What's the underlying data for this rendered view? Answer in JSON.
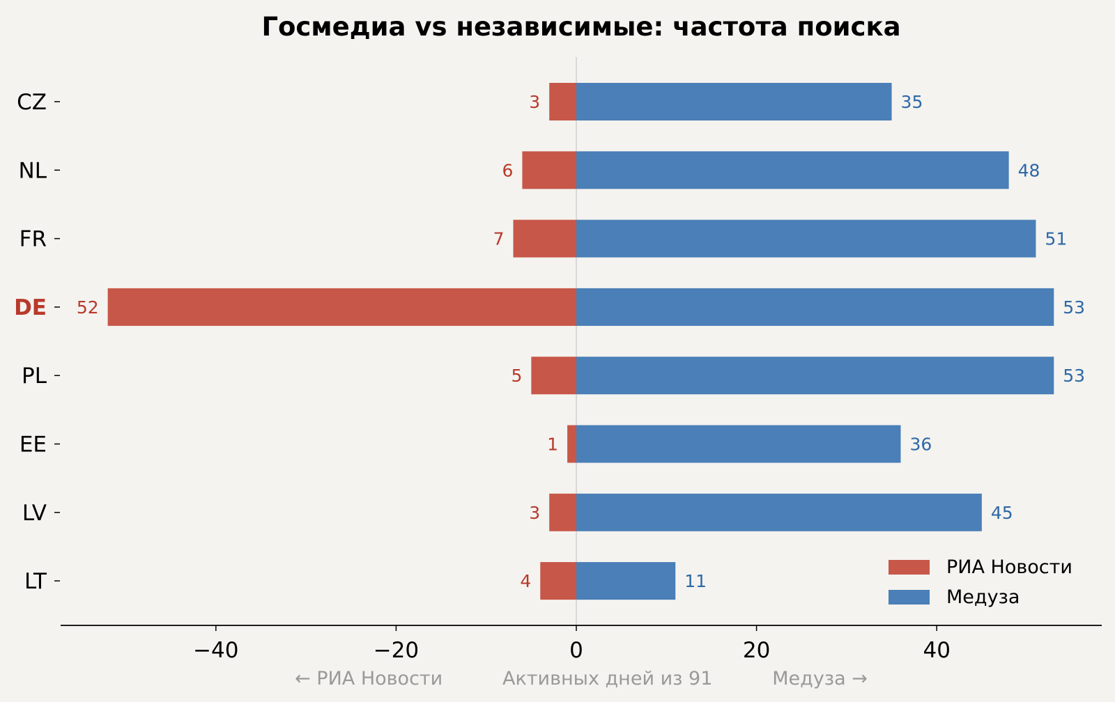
{
  "chart_data": {
    "type": "bar",
    "orientation": "horizontal-diverging",
    "title": "Госмедиа vs независимые: частота поиска",
    "xlabel": "← РИА Новости          Активных дней из 91          Медуза →",
    "ylabel": "",
    "categories": [
      "CZ",
      "NL",
      "FR",
      "DE",
      "PL",
      "EE",
      "LV",
      "LT"
    ],
    "highlighted_category": "DE",
    "series": [
      {
        "name": "РИА Новости",
        "values": [
          3,
          6,
          7,
          52,
          5,
          1,
          3,
          4
        ],
        "color": "#c75749",
        "label_color": "#b8392c",
        "direction": "left"
      },
      {
        "name": "Медуза",
        "values": [
          35,
          48,
          51,
          53,
          53,
          36,
          45,
          11
        ],
        "color": "#4a7fb7",
        "label_color": "#2e68a6",
        "direction": "right"
      }
    ],
    "xlim": [
      -57.5,
      58
    ],
    "xticks": [
      -40,
      -20,
      0,
      20,
      40
    ],
    "xtick_labels": [
      "−40",
      "−20",
      "0",
      "20",
      "40"
    ],
    "grid": false,
    "legend_position": "lower-right",
    "colors": {
      "background": "#f4f3ef",
      "highlight_label": "#b8392c",
      "axis_note": "#999999",
      "zero_line": "#d0d0d0"
    }
  }
}
